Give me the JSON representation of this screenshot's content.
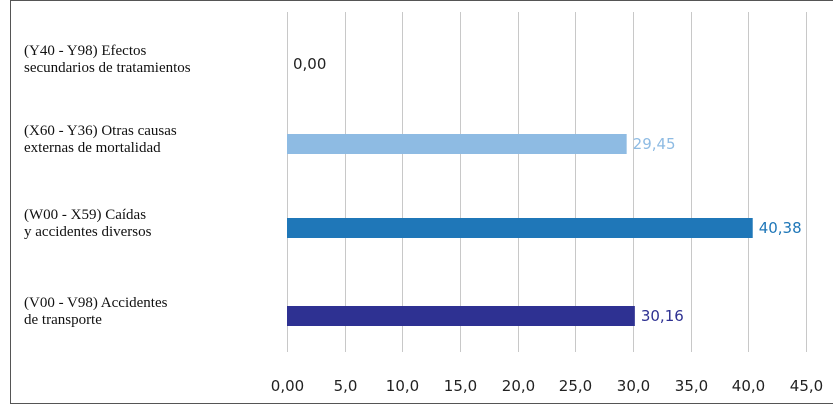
{
  "chart_data": {
    "type": "bar",
    "orientation": "horizontal",
    "title": "",
    "xlabel": "",
    "ylabel": "",
    "xlim": [
      0,
      45
    ],
    "grid": true,
    "legend": "none",
    "ticks": [
      "0,00",
      "5,0",
      "10,0",
      "15,0",
      "20,0",
      "25,0",
      "30,0",
      "35,0",
      "40,0",
      "45,0"
    ],
    "categories": [
      {
        "label_lines": [
          "(Y40 - Y98) Efectos",
          "secundarios de tratamientos"
        ],
        "value": 0.0,
        "value_label": "0,00",
        "color": "#8ebbe3",
        "label_color": "#222222"
      },
      {
        "label_lines": [
          "(X60 - Y36) Otras causas",
          "externas de mortalidad"
        ],
        "value": 29.45,
        "value_label": "29,45",
        "color": "#8ebbe3",
        "label_color": "#8ebbe3"
      },
      {
        "label_lines": [
          "(W00 - X59) Caídas",
          "y accidentes diversos"
        ],
        "value": 40.38,
        "value_label": "40,38",
        "color": "#1f77b8",
        "label_color": "#1f77b8"
      },
      {
        "label_lines": [
          "(V00 - V98) Accidentes",
          "de transporte"
        ],
        "value": 30.16,
        "value_label": "30,16",
        "color": "#2e3192",
        "label_color": "#2e3192"
      }
    ]
  }
}
